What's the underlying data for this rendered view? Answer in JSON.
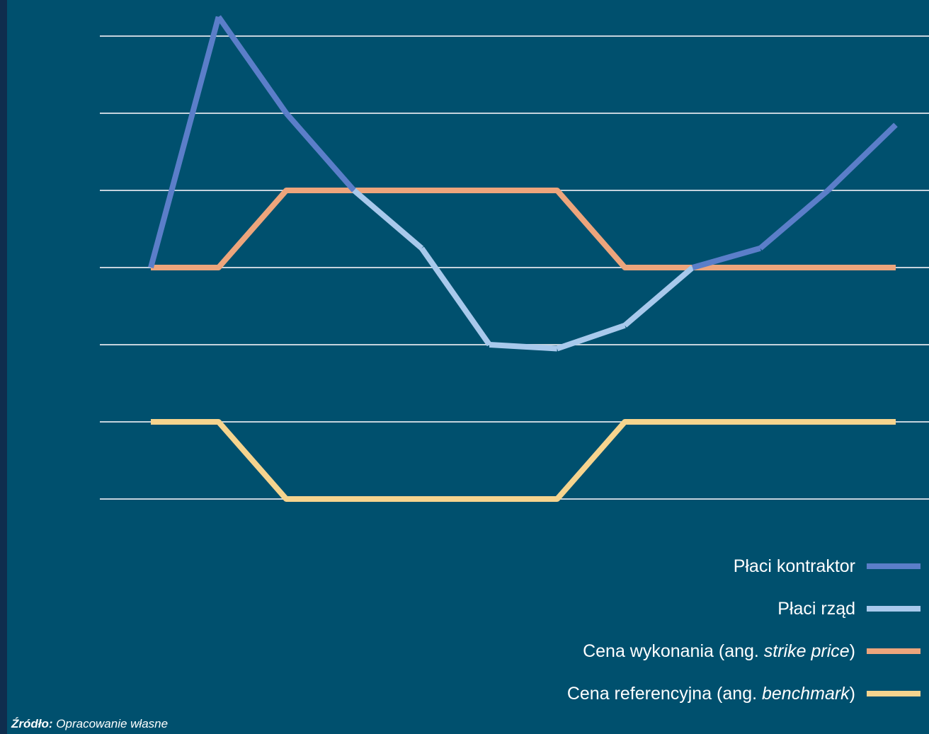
{
  "chart_data": {
    "type": "line",
    "x": [
      1,
      2,
      3,
      4,
      5,
      6,
      7,
      8,
      9,
      10,
      11,
      12
    ],
    "grid": true,
    "grid_levels": [
      1,
      2,
      3,
      4,
      5,
      6,
      7
    ],
    "ylim": [
      1,
      7.3
    ],
    "colors": {
      "contractor": "#5b7ec9",
      "government": "#a8c9ec",
      "strike": "#eda57c",
      "benchmark": "#f6d48e",
      "grid": "#c5d3dd"
    },
    "market_price": {
      "x": [
        1,
        2,
        3,
        4,
        5,
        6,
        7,
        8,
        9,
        10,
        11,
        12
      ],
      "y": [
        4,
        7.25,
        6,
        5,
        4.25,
        3,
        2.95,
        3.25,
        4,
        4.25,
        5,
        5.85
      ]
    },
    "strike_price": {
      "x": [
        1,
        2,
        3,
        4,
        5,
        6,
        7,
        8,
        9,
        10,
        11,
        12
      ],
      "y": [
        4,
        4,
        5,
        5,
        5,
        5,
        5,
        4,
        4,
        4,
        4,
        4
      ]
    },
    "benchmark_price": {
      "x": [
        1,
        2,
        3,
        4,
        5,
        6,
        7,
        8,
        9,
        10,
        11,
        12
      ],
      "y": [
        2,
        2,
        1,
        1,
        1,
        1,
        1,
        2,
        2,
        2,
        2,
        2
      ]
    }
  },
  "legend": {
    "contractor": "Płaci kontraktor",
    "government": "Płaci rząd",
    "strike_prefix": "Cena wykonania (ang. ",
    "strike_term": "strike price",
    "strike_suffix": ")",
    "benchmark_prefix": "Cena referencyjna (ang. ",
    "benchmark_term": "benchmark",
    "benchmark_suffix": ")"
  },
  "source": {
    "label": "Źródło:",
    "text": " Opracowanie własne"
  }
}
